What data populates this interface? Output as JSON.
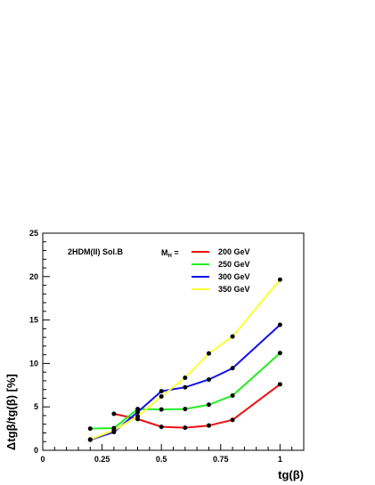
{
  "chart_data": {
    "type": "line",
    "title": "",
    "xlabel": "tg(β)",
    "ylabel": "Δtgβ/tg(β)  [%]",
    "xlim": [
      0,
      1.1
    ],
    "ylim": [
      0,
      25
    ],
    "xticks": [
      0,
      0.25,
      0.5,
      0.75,
      1
    ],
    "xtick_labels": [
      "0",
      "0.25",
      "0.5",
      "0.75",
      "1"
    ],
    "yticks": [
      0,
      5,
      10,
      15,
      20,
      25
    ],
    "ytick_labels": [
      "0",
      "5",
      "10",
      "15",
      "20",
      "25"
    ],
    "grid": false,
    "annotation": "2HDM(II)  Sol.B",
    "legend_title": "M",
    "legend_title_sub": "H",
    "legend_title_suffix": " =",
    "legend_placement": "top-right",
    "series": [
      {
        "name": "200 GeV",
        "color": "#ee1111",
        "x": [
          0.3,
          0.4,
          0.5,
          0.6,
          0.7,
          0.8,
          1.0
        ],
        "y": [
          4.2,
          3.6,
          2.7,
          2.6,
          2.85,
          3.5,
          7.6
        ]
      },
      {
        "name": "250 GeV",
        "color": "#22ee22",
        "x": [
          0.2,
          0.3,
          0.4,
          0.5,
          0.6,
          0.7,
          0.8,
          1.0
        ],
        "y": [
          2.5,
          2.55,
          4.75,
          4.7,
          4.75,
          5.25,
          6.3,
          11.2
        ]
      },
      {
        "name": "300 GeV",
        "color": "#1111ee",
        "x": [
          0.2,
          0.3,
          0.4,
          0.5,
          0.6,
          0.7,
          0.8,
          1.0
        ],
        "y": [
          1.2,
          2.1,
          4.4,
          6.8,
          7.25,
          8.15,
          9.45,
          14.45
        ]
      },
      {
        "name": "350 GeV",
        "color": "#ffff33",
        "x": [
          0.2,
          0.3,
          0.4,
          0.5,
          0.6,
          0.7,
          0.8,
          1.0
        ],
        "y": [
          1.25,
          2.3,
          3.9,
          6.2,
          8.35,
          11.15,
          13.1,
          19.65
        ]
      }
    ]
  }
}
